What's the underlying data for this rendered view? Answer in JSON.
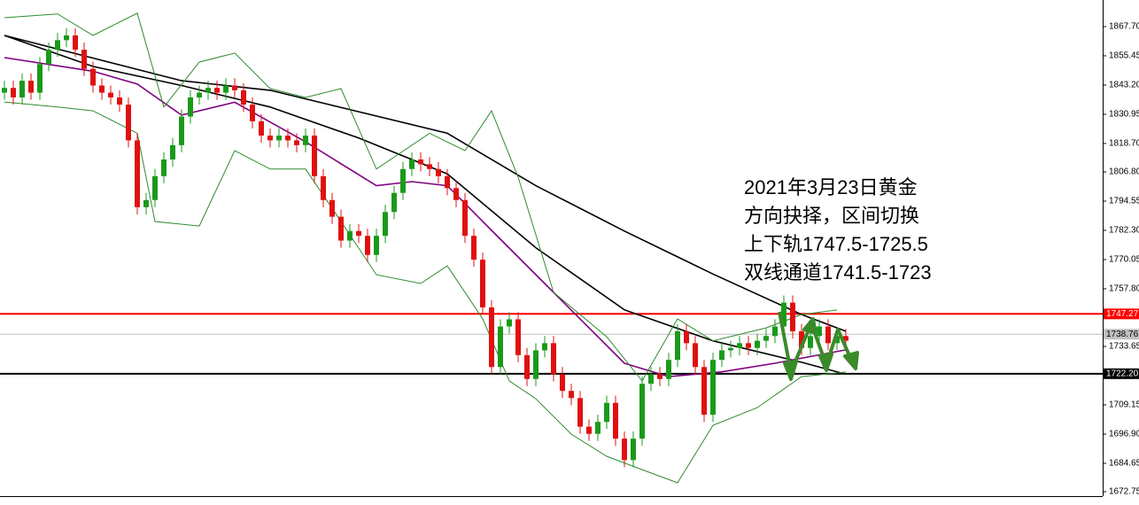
{
  "chart_data": {
    "type": "candlestick",
    "x": [
      0,
      1,
      2,
      3,
      4,
      5,
      6,
      7,
      8,
      9,
      10,
      11,
      12,
      13,
      14,
      15,
      16,
      17,
      18,
      19,
      20,
      21,
      22,
      23,
      24,
      25,
      26,
      27,
      28,
      29,
      30,
      31,
      32,
      33,
      34,
      35,
      36,
      37,
      38,
      39,
      40,
      41,
      42,
      43,
      44,
      45,
      46,
      47,
      48,
      49,
      50,
      51,
      52,
      53,
      54,
      55,
      56,
      57,
      58,
      59,
      60,
      61,
      62,
      63,
      64,
      65,
      66,
      67,
      68,
      69,
      70,
      71,
      72,
      73,
      74,
      75,
      76,
      77,
      78,
      79,
      80,
      81,
      82,
      83,
      84,
      85,
      86,
      87,
      88,
      89,
      90,
      91,
      92,
      93,
      94,
      95
    ],
    "open": [
      1840,
      1842,
      1838,
      1845,
      1840,
      1852,
      1858,
      1862,
      1864,
      1858,
      1850,
      1843,
      1840,
      1838,
      1835,
      1820,
      1792,
      1795,
      1805,
      1812,
      1818,
      1830,
      1838,
      1840,
      1842,
      1840,
      1843,
      1841,
      1835,
      1828,
      1822,
      1820,
      1822,
      1820,
      1818,
      1822,
      1805,
      1795,
      1788,
      1778,
      1782,
      1780,
      1772,
      1780,
      1790,
      1798,
      1808,
      1812,
      1810,
      1808,
      1805,
      1800,
      1795,
      1780,
      1770,
      1750,
      1725,
      1742,
      1745,
      1730,
      1720,
      1732,
      1735,
      1722,
      1715,
      1712,
      1700,
      1697,
      1702,
      1710,
      1695,
      1686,
      1695,
      1718,
      1722,
      1720,
      1728,
      1740,
      1735,
      1725,
      1705,
      1728,
      1732,
      1733,
      1735,
      1733,
      1736,
      1738,
      1742,
      1752,
      1740,
      1733,
      1738,
      1742,
      1735,
      1738
    ],
    "high": [
      1845,
      1845,
      1848,
      1848,
      1855,
      1861,
      1865,
      1867,
      1867,
      1861,
      1853,
      1846,
      1843,
      1841,
      1838,
      1823,
      1798,
      1808,
      1815,
      1821,
      1833,
      1841,
      1843,
      1845,
      1845,
      1846,
      1846,
      1844,
      1838,
      1831,
      1825,
      1825,
      1825,
      1823,
      1825,
      1825,
      1808,
      1798,
      1791,
      1785,
      1785,
      1783,
      1783,
      1793,
      1801,
      1811,
      1815,
      1815,
      1813,
      1811,
      1808,
      1803,
      1798,
      1783,
      1773,
      1753,
      1745,
      1748,
      1748,
      1733,
      1735,
      1738,
      1738,
      1725,
      1718,
      1715,
      1703,
      1705,
      1713,
      1713,
      1698,
      1698,
      1721,
      1725,
      1725,
      1731,
      1743,
      1743,
      1738,
      1728,
      1731,
      1735,
      1736,
      1738,
      1738,
      1739,
      1741,
      1745,
      1755,
      1755,
      1743,
      1741,
      1745,
      1745,
      1741,
      1741
    ],
    "low": [
      1837,
      1835,
      1835,
      1837,
      1837,
      1849,
      1855,
      1859,
      1855,
      1847,
      1840,
      1837,
      1835,
      1832,
      1817,
      1789,
      1789,
      1792,
      1802,
      1809,
      1815,
      1827,
      1835,
      1837,
      1837,
      1837,
      1838,
      1832,
      1825,
      1819,
      1817,
      1817,
      1817,
      1815,
      1815,
      1802,
      1792,
      1785,
      1775,
      1775,
      1777,
      1769,
      1769,
      1777,
      1787,
      1795,
      1805,
      1807,
      1805,
      1802,
      1797,
      1792,
      1777,
      1767,
      1747,
      1722,
      1722,
      1739,
      1727,
      1717,
      1717,
      1729,
      1719,
      1712,
      1709,
      1697,
      1694,
      1694,
      1699,
      1692,
      1683,
      1683,
      1692,
      1715,
      1717,
      1717,
      1725,
      1732,
      1722,
      1702,
      1702,
      1725,
      1729,
      1730,
      1730,
      1730,
      1733,
      1735,
      1739,
      1737,
      1730,
      1730,
      1735,
      1732,
      1732,
      1733
    ],
    "close": [
      1842,
      1838,
      1845,
      1840,
      1852,
      1858,
      1862,
      1864,
      1858,
      1850,
      1843,
      1840,
      1838,
      1835,
      1820,
      1792,
      1795,
      1805,
      1812,
      1818,
      1830,
      1838,
      1840,
      1842,
      1840,
      1843,
      1841,
      1835,
      1828,
      1822,
      1820,
      1822,
      1820,
      1818,
      1822,
      1805,
      1795,
      1788,
      1778,
      1782,
      1780,
      1772,
      1780,
      1790,
      1798,
      1808,
      1812,
      1810,
      1808,
      1805,
      1800,
      1795,
      1780,
      1770,
      1750,
      1725,
      1742,
      1745,
      1730,
      1720,
      1732,
      1735,
      1722,
      1715,
      1712,
      1700,
      1697,
      1702,
      1710,
      1695,
      1686,
      1695,
      1718,
      1722,
      1720,
      1728,
      1740,
      1735,
      1725,
      1705,
      1728,
      1732,
      1733,
      1735,
      1733,
      1736,
      1738,
      1742,
      1752,
      1740,
      1733,
      1738,
      1742,
      1735,
      1738,
      1736
    ],
    "up_color": "#1a9a1a",
    "down_color": "#e01010",
    "lines": [
      {
        "color": "#000000",
        "x": [
          0,
          20,
          30,
          40,
          50,
          60,
          70,
          80,
          90,
          95
        ],
        "values": [
          1864,
          1845,
          1841,
          1832,
          1823,
          1801,
          1782,
          1764,
          1747,
          1740
        ]
      },
      {
        "color": "#000000",
        "x": [
          0,
          10,
          20,
          30,
          40,
          50,
          60,
          70,
          80,
          90,
          95
        ],
        "values": [
          1864,
          1851,
          1843,
          1834,
          1821,
          1806,
          1775,
          1749,
          1736,
          1727,
          1722
        ]
      },
      {
        "color": "#800080",
        "x": [
          0,
          10,
          15,
          20,
          26,
          34,
          42,
          46,
          50,
          55,
          61,
          70,
          75,
          81,
          87,
          95
        ],
        "values": [
          1854.7,
          1849,
          1843.6,
          1830.6,
          1836,
          1819.4,
          1801,
          1802.7,
          1801,
          1782.3,
          1760,
          1726.6,
          1721,
          1723,
          1726.6,
          1732.2
        ]
      },
      {
        "color": "#2e8b2e",
        "x": [
          0,
          6,
          10,
          15,
          18,
          22,
          26,
          30,
          34,
          38,
          42,
          48,
          52,
          55,
          58,
          62,
          68,
          72,
          76,
          80,
          86,
          90,
          94
        ],
        "values": [
          1871.4,
          1873,
          1864,
          1873.3,
          1834,
          1852.8,
          1856.6,
          1841.7,
          1838,
          1841.7,
          1808,
          1823,
          1815.7,
          1832.4,
          1804.6,
          1756.3,
          1737.7,
          1719.2,
          1745.2,
          1736,
          1741.4,
          1747,
          1748.9
        ]
      },
      {
        "color": "#2e8b2e",
        "x": [
          0,
          6,
          10,
          15,
          17,
          22,
          26,
          30,
          34,
          38,
          42,
          47,
          50,
          54,
          57,
          60,
          64,
          68,
          72,
          76,
          80,
          85,
          90,
          95
        ],
        "values": [
          1836.1,
          1834,
          1832.4,
          1823,
          1786,
          1784.1,
          1815.7,
          1808,
          1808,
          1786,
          1763.7,
          1760,
          1767.4,
          1745.2,
          1719.2,
          1711.7,
          1696.9,
          1687.6,
          1682,
          1676.5,
          1700.6,
          1708,
          1721,
          1722.9
        ]
      }
    ],
    "levels": [
      {
        "value": 1747.27,
        "label": "1747.27",
        "color": "#ff0000",
        "text_color": "#ffffff"
      },
      {
        "value": 1738.76,
        "label": "1738.76",
        "color": "#c0c0c0",
        "text_color": "#000000"
      },
      {
        "value": 1722.2,
        "label": "1722.20",
        "color": "#000000",
        "text_color": "#ffffff"
      }
    ],
    "annotation": [
      "2021年3月23日黄金",
      "方向抉择，区间切换",
      "上下轨1747.5-1725.5",
      "双线通道1741.5-1723"
    ],
    "xlim": [
      -0.5,
      124
    ],
    "ylim": [
      1670.89,
      1878.84
    ],
    "yticks": [
      {
        "value": 1867.7,
        "label": "1867.70"
      },
      1855.45,
      {
        "value": 1843.2,
        "label": "1843.20"
      },
      1830.95,
      {
        "value": 1818.7,
        "label": "1818.70"
      },
      {
        "value": 1806.8,
        "label": "1806.80"
      },
      1794.55,
      {
        "value": 1782.3,
        "label": "1782.30"
      },
      1770.05,
      {
        "value": 1757.8,
        "label": "1757.80"
      },
      1733.65,
      1709.15,
      {
        "value": 1696.9,
        "label": "1696.90"
      },
      1684.65,
      1672.75
    ]
  }
}
